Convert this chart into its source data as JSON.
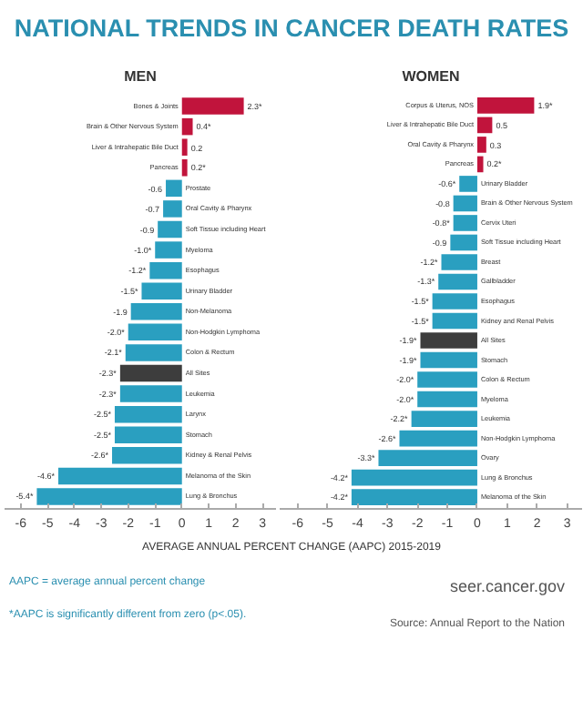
{
  "chart_data": [
    {
      "type": "bar",
      "orientation": "horizontal",
      "title": "NATIONAL TRENDS IN CANCER DEATH RATES",
      "subtitle": "MEN",
      "xlabel": "AVERAGE ANNUAL PERCENT CHANGE (AAPC) 2015-2019",
      "categories": [
        "Bones & Joints",
        "Brain & Other Nervous System",
        "Liver & Intrahepatic Bile Duct",
        "Pancreas",
        "Prostate",
        "Oral Cavity & Pharynx",
        "Soft Tissue including Heart",
        "Myeloma",
        "Esophagus",
        "Urinary Bladder",
        "Non-Melanoma",
        "Non-Hodgkin Lymphoma",
        "Colon & Rectum",
        "All Sites",
        "Leukemia",
        "Larynx",
        "Stomach",
        "Kidney & Renal Pelvis",
        "Melanoma of the Skin",
        "Lung & Bronchus"
      ],
      "values": [
        2.3,
        0.4,
        0.2,
        0.2,
        -0.6,
        -0.7,
        -0.9,
        -1.0,
        -1.2,
        -1.5,
        -1.9,
        -2.0,
        -2.1,
        -2.3,
        -2.3,
        -2.5,
        -2.5,
        -2.6,
        -4.6,
        -5.4
      ],
      "value_labels": [
        "2.3*",
        "0.4*",
        "0.2",
        "0.2*",
        "-0.6",
        "-0.7",
        "-0.9",
        "-1.0*",
        "-1.2*",
        "-1.5*",
        "-1.9",
        "-2.0*",
        "-2.1*",
        "-2.3*",
        "-2.3*",
        "-2.5*",
        "-2.5*",
        "-2.6*",
        "-4.6*",
        "-5.4*"
      ],
      "colors": [
        "#c1143c",
        "#c1143c",
        "#c1143c",
        "#c1143c",
        "#2a9fc0",
        "#2a9fc0",
        "#2a9fc0",
        "#2a9fc0",
        "#2a9fc0",
        "#2a9fc0",
        "#2a9fc0",
        "#2a9fc0",
        "#2a9fc0",
        "#3d3d3d",
        "#2a9fc0",
        "#2a9fc0",
        "#2a9fc0",
        "#2a9fc0",
        "#2a9fc0",
        "#2a9fc0"
      ],
      "xlim": [
        -6.6,
        3.5
      ],
      "xticks": [
        -6,
        -5,
        -4,
        -3,
        -2,
        -1,
        0,
        1,
        2,
        3
      ],
      "grid": false
    },
    {
      "type": "bar",
      "orientation": "horizontal",
      "subtitle": "WOMEN",
      "categories": [
        "Corpus & Uterus, NOS",
        "Liver & Intrahepatic Bile Duct",
        "Oral Cavity & Pharynx",
        "Pancreas",
        "Urinary Bladder",
        "Brain & Other Nervous System",
        "Cervix Uteri",
        "Soft Tissue including Heart",
        "Breast",
        "Gallbladder",
        "Esophagus",
        "Kidney and Renal Pelvis",
        "All Sites",
        "Stomach",
        "Colon & Rectum",
        "Myeloma",
        "Leukemia",
        "Non-Hodgkin Lymphoma",
        "Ovary",
        "Lung & Bronchus",
        "Melanoma of the Skin"
      ],
      "values": [
        1.9,
        0.5,
        0.3,
        0.2,
        -0.6,
        -0.8,
        -0.8,
        -0.9,
        -1.2,
        -1.3,
        -1.5,
        -1.5,
        -1.9,
        -1.9,
        -2.0,
        -2.0,
        -2.2,
        -2.6,
        -3.3,
        -4.2,
        -4.2
      ],
      "value_labels": [
        "1.9*",
        "0.5",
        "0.3",
        "0.2*",
        "-0.6*",
        "-0.8",
        "-0.8*",
        "-0.9",
        "-1.2*",
        "-1.3*",
        "-1.5*",
        "-1.5*",
        "-1.9*",
        "-1.9*",
        "-2.0*",
        "-2.0*",
        "-2.2*",
        "-2.6*",
        "-3.3*",
        "-4.2*",
        "-4.2*"
      ],
      "colors": [
        "#c1143c",
        "#c1143c",
        "#c1143c",
        "#c1143c",
        "#2a9fc0",
        "#2a9fc0",
        "#2a9fc0",
        "#2a9fc0",
        "#2a9fc0",
        "#2a9fc0",
        "#2a9fc0",
        "#2a9fc0",
        "#3d3d3d",
        "#2a9fc0",
        "#2a9fc0",
        "#2a9fc0",
        "#2a9fc0",
        "#2a9fc0",
        "#2a9fc0",
        "#2a9fc0",
        "#2a9fc0"
      ],
      "xlim": [
        -6.6,
        3.5
      ],
      "xticks": [
        -6,
        -5,
        -4,
        -3,
        -2,
        -1,
        0,
        1,
        2,
        3
      ],
      "grid": false,
      "annotations": [
        "AAPC = average annual percent change",
        "*AAPC is significantly different from zero (p<.05).",
        "seer.cancer.gov",
        "Source: Annual Report to the Nation"
      ]
    }
  ]
}
